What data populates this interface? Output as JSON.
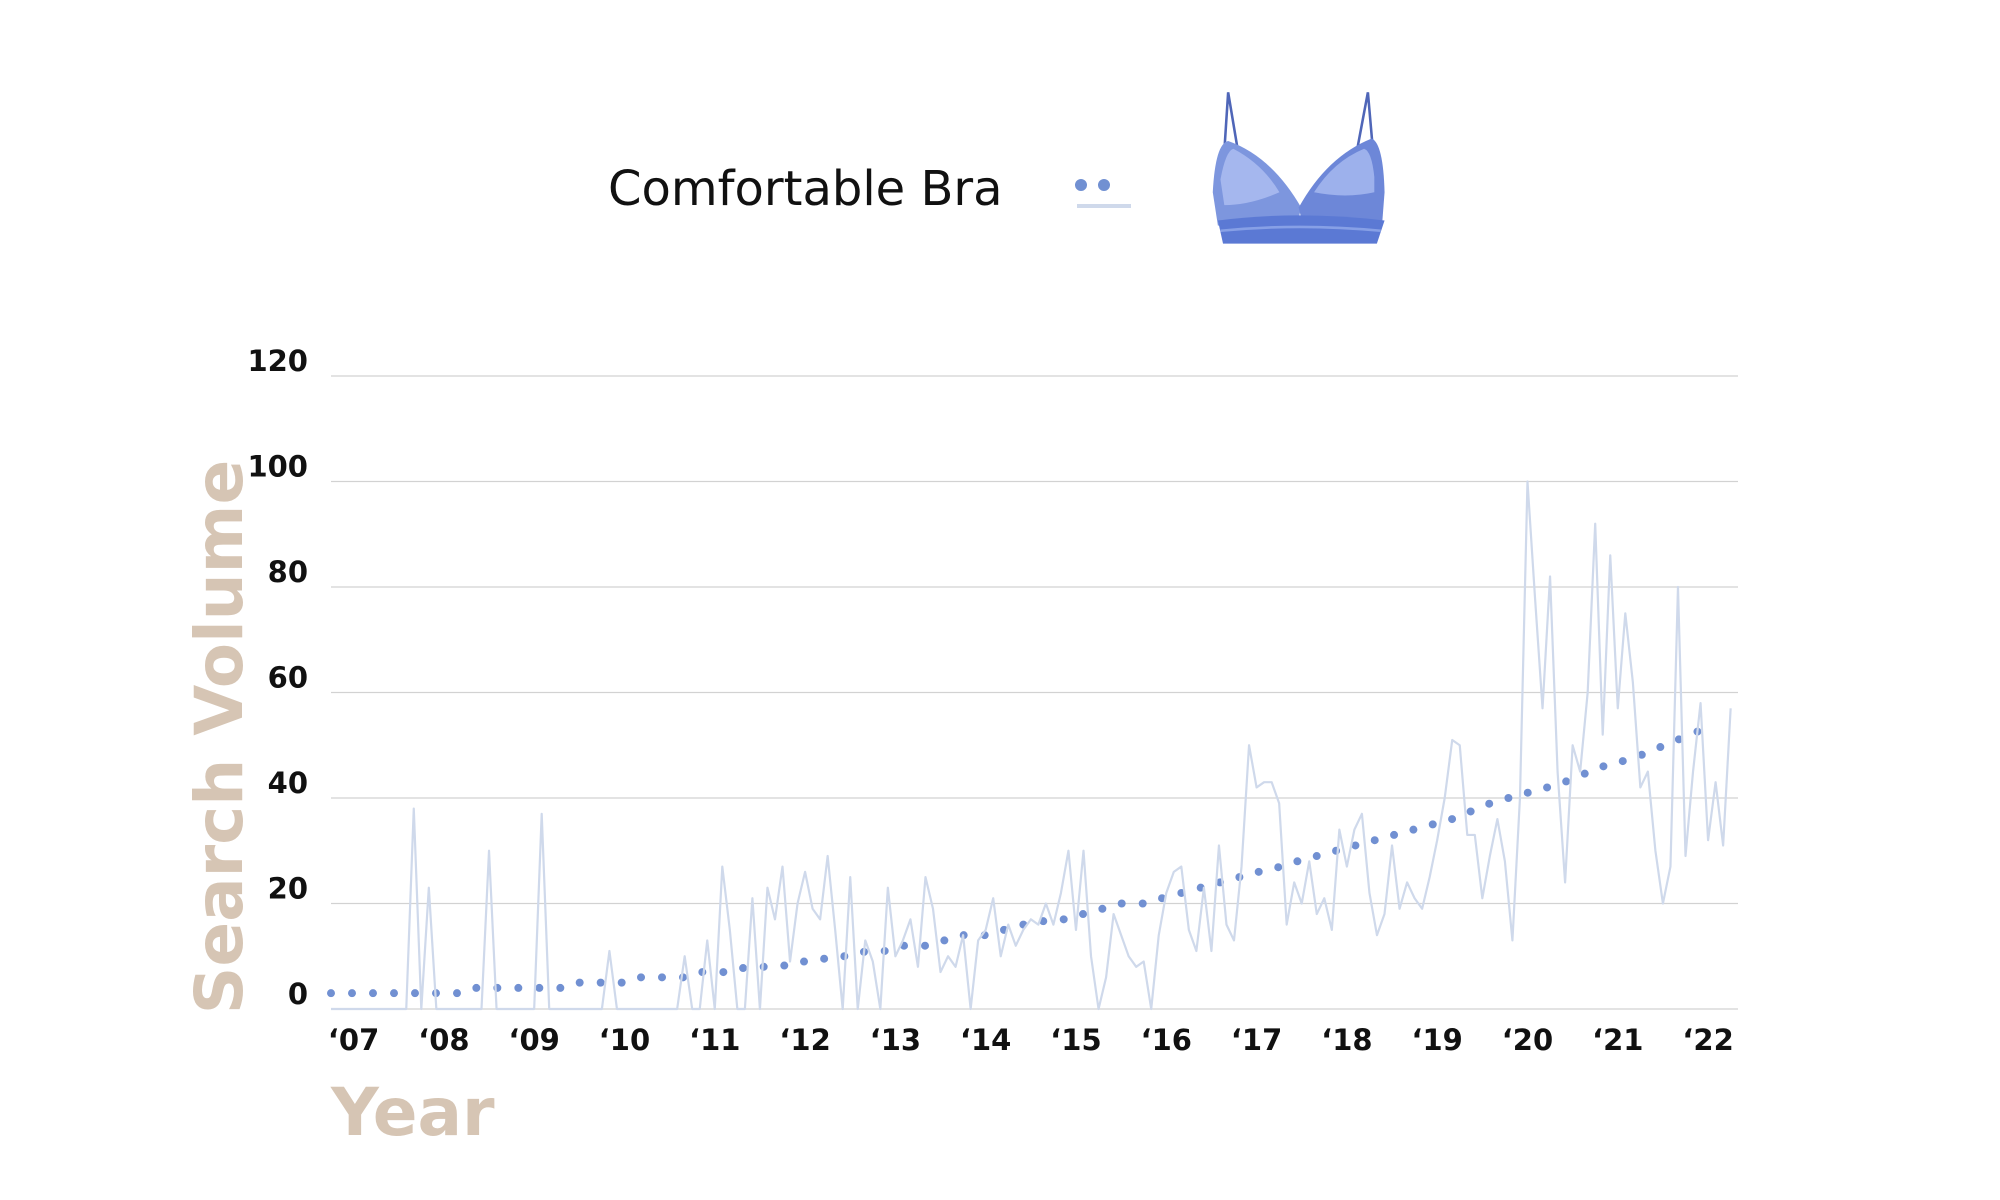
{
  "chart_data": {
    "type": "line",
    "ylabel": "Search Volume",
    "xlabel": "Year",
    "ylim": [
      0,
      120
    ],
    "yticks": [
      0,
      20,
      40,
      60,
      80,
      100,
      120
    ],
    "grid": true,
    "categories": [
      null,
      null,
      null,
      "‘07",
      null,
      null,
      null,
      null,
      null,
      null,
      null,
      null,
      null,
      null,
      null,
      "‘08",
      null,
      null,
      null,
      null,
      null,
      null,
      null,
      null,
      null,
      null,
      null,
      "‘09",
      null,
      null,
      null,
      null,
      null,
      null,
      null,
      null,
      null,
      null,
      null,
      "‘10",
      null,
      null,
      null,
      null,
      null,
      null,
      null,
      null,
      null,
      null,
      null,
      "‘11",
      null,
      null,
      null,
      null,
      null,
      null,
      null,
      null,
      null,
      null,
      null,
      "‘12",
      null,
      null,
      null,
      null,
      null,
      null,
      null,
      null,
      null,
      null,
      null,
      "‘13",
      null,
      null,
      null,
      null,
      null,
      null,
      null,
      null,
      null,
      null,
      null,
      "‘14",
      null,
      null,
      null,
      null,
      null,
      null,
      null,
      null,
      null,
      null,
      null,
      "‘15",
      null,
      null,
      null,
      null,
      null,
      null,
      null,
      null,
      null,
      null,
      null,
      "‘16",
      null,
      null,
      null,
      null,
      null,
      null,
      null,
      null,
      null,
      null,
      null,
      "‘17",
      null,
      null,
      null,
      null,
      null,
      null,
      null,
      null,
      null,
      null,
      null,
      "‘18",
      null,
      null,
      null,
      null,
      null,
      null,
      null,
      null,
      null,
      null,
      null,
      "‘19",
      null,
      null,
      null,
      null,
      null,
      null,
      null,
      null,
      null,
      null,
      null,
      "‘20",
      null,
      null,
      null,
      null,
      null,
      null,
      null,
      null,
      null,
      null,
      null,
      "‘21",
      null,
      null,
      null,
      null,
      null,
      null,
      null,
      null,
      null,
      null,
      null,
      "‘22",
      null,
      null,
      null
    ],
    "series": [
      {
        "name": "Comfortable Bra",
        "color": "#cfd9eb",
        "style": "solid",
        "values": [
          0,
          0,
          0,
          0,
          0,
          0,
          0,
          0,
          0,
          0,
          0,
          38,
          0,
          23,
          0,
          0,
          0,
          0,
          0,
          0,
          0,
          30,
          0,
          0,
          0,
          0,
          0,
          0,
          37,
          0,
          0,
          0,
          0,
          0,
          0,
          0,
          0,
          11,
          0,
          0,
          0,
          0,
          0,
          0,
          0,
          0,
          0,
          10,
          0,
          0,
          13,
          0,
          27,
          15,
          0,
          0,
          21,
          0,
          23,
          17,
          27,
          9,
          20,
          26,
          19,
          17,
          29,
          15,
          0,
          25,
          0,
          13,
          9,
          0,
          23,
          10,
          13,
          17,
          8,
          25,
          19,
          7,
          10,
          8,
          14,
          0,
          13,
          15,
          21,
          10,
          16,
          12,
          15,
          17,
          16,
          20,
          16,
          22,
          30,
          15,
          30,
          10,
          0,
          6,
          18,
          14,
          10,
          8,
          9,
          0,
          14,
          22,
          26,
          27,
          15,
          11,
          23,
          11,
          31,
          16,
          13,
          27,
          50,
          42,
          43,
          43,
          39,
          16,
          24,
          20,
          28,
          18,
          21,
          15,
          34,
          27,
          34,
          37,
          22,
          14,
          18,
          31,
          19,
          24,
          21,
          19,
          25,
          32,
          40,
          51,
          50,
          33,
          33,
          21,
          29,
          36,
          28,
          13,
          40,
          100,
          78,
          57,
          82,
          45,
          24,
          50,
          45,
          60,
          92,
          52,
          86,
          57,
          75,
          62,
          42,
          45,
          30,
          20,
          27,
          80,
          29,
          45,
          58,
          32,
          43,
          31,
          57
        ]
      },
      {
        "color": "#7190d2",
        "style": "dotted",
        "values": [
          3,
          3,
          3,
          3,
          3,
          3,
          3,
          3,
          3,
          3,
          3,
          3,
          3,
          3,
          3,
          3,
          3,
          3,
          3,
          4,
          4,
          4,
          4,
          4,
          4,
          4,
          4,
          4,
          4,
          4,
          4,
          4,
          5,
          5,
          5,
          5,
          5,
          5,
          5,
          5,
          5,
          6,
          6,
          6,
          6,
          6,
          6,
          6,
          6,
          7,
          7,
          7,
          7,
          7,
          7,
          8,
          8,
          8,
          8,
          8,
          8,
          9,
          9,
          9,
          9,
          9,
          10,
          10,
          10,
          10,
          10,
          11,
          11,
          11,
          11,
          11,
          12,
          12,
          12,
          12,
          13,
          13,
          13,
          13,
          14,
          14,
          14,
          14,
          15,
          15,
          15,
          15,
          16,
          16,
          16,
          17,
          17,
          17,
          17,
          18,
          18,
          18,
          19,
          19,
          19,
          20,
          20,
          20,
          20,
          21,
          21,
          21,
          22,
          22,
          22,
          23,
          23,
          24,
          24,
          24,
          25,
          25,
          25,
          26,
          26,
          26,
          27,
          27,
          28,
          28,
          28,
          29,
          29,
          30,
          30,
          30,
          31,
          31,
          32,
          32,
          32,
          33,
          33,
          34,
          34,
          35,
          35,
          35,
          36,
          36,
          37,
          37,
          38,
          38,
          39,
          39,
          40,
          40,
          40,
          41,
          41,
          42,
          42,
          43,
          43,
          44,
          44,
          45,
          45,
          46,
          46,
          47,
          47,
          48,
          48,
          49,
          49,
          50,
          51,
          51,
          52,
          52,
          53,
          53,
          54,
          null,
          null
        ]
      }
    ]
  }
}
